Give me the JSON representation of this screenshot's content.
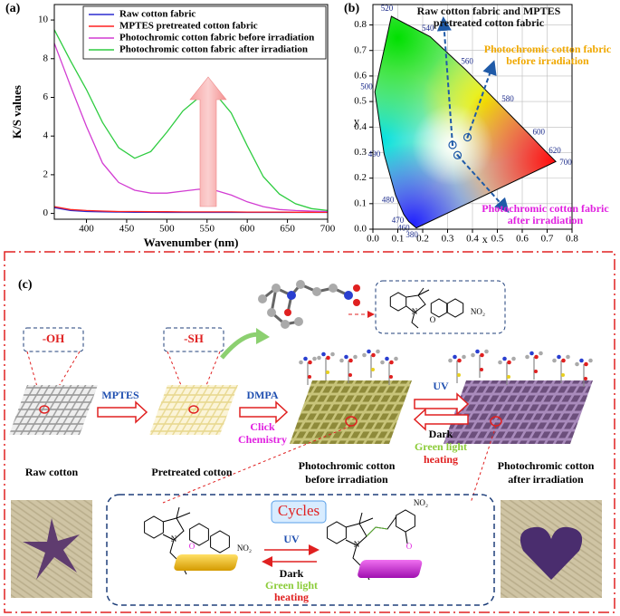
{
  "chart_data": [
    {
      "type": "line",
      "panel_label": "(a)",
      "x_label": "Wavenumber (nm)",
      "y_label": "K/S values",
      "x": [
        360,
        380,
        400,
        420,
        440,
        460,
        480,
        500,
        520,
        540,
        560,
        580,
        600,
        620,
        640,
        660,
        680,
        700
      ],
      "series": [
        {
          "name": "Raw cotton fabric",
          "color": "#2b2bd0",
          "values": [
            0.3,
            0.15,
            0.1,
            0.08,
            0.07,
            0.06,
            0.06,
            0.05,
            0.05,
            0.05,
            0.05,
            0.05,
            0.05,
            0.05,
            0.05,
            0.05,
            0.05,
            0.05
          ]
        },
        {
          "name": "MPTES pretreated cotton fabric",
          "color": "#ff2020",
          "values": [
            0.35,
            0.2,
            0.15,
            0.12,
            0.1,
            0.1,
            0.09,
            0.09,
            0.08,
            0.08,
            0.08,
            0.08,
            0.07,
            0.07,
            0.07,
            0.06,
            0.06,
            0.06
          ]
        },
        {
          "name": "Photochromic cotton fabric before irradiation",
          "color": "#d23cd2",
          "values": [
            8.8,
            6.6,
            4.5,
            2.6,
            1.6,
            1.2,
            1.05,
            1.05,
            1.15,
            1.25,
            1.2,
            0.95,
            0.6,
            0.35,
            0.2,
            0.15,
            0.12,
            0.1
          ]
        },
        {
          "name": "Photochromic cotton fabric after irradiation",
          "color": "#2ecc40",
          "values": [
            9.5,
            7.9,
            6.4,
            4.7,
            3.4,
            2.85,
            3.2,
            4.2,
            5.3,
            6.0,
            6.2,
            5.2,
            3.5,
            1.9,
            1.0,
            0.5,
            0.25,
            0.15
          ]
        }
      ],
      "xlim": [
        360,
        700
      ],
      "xticks": [
        400,
        450,
        500,
        550,
        600,
        650,
        700
      ],
      "ylim": [
        -0.3,
        10.8
      ],
      "yticks": [
        0,
        2,
        4,
        6,
        8,
        10
      ],
      "legend": "upper right"
    },
    {
      "type": "scatter",
      "panel_label": "(b)",
      "x_label": "x",
      "y_label": "y",
      "series": [
        {
          "name": "Raw cotton fabric and MPTES pretreated cotton fabric",
          "color": "#1f5aa8",
          "label_color": "#111111",
          "x": [
            0.32
          ],
          "values": [
            0.33
          ]
        },
        {
          "name": "Photochromic cotton fabric before irradiation",
          "color": "#1f5aa8",
          "label_color": "#f0a800",
          "x": [
            0.38
          ],
          "values": [
            0.36
          ]
        },
        {
          "name": "Photochromic cotton fabric after irradiation",
          "color": "#1f5aa8",
          "label_color": "#e020e0",
          "x": [
            0.34
          ],
          "values": [
            0.29
          ]
        }
      ],
      "spectral_locus": {
        "wavelengths": [
          380,
          460,
          470,
          480,
          490,
          500,
          520,
          540,
          560,
          580,
          600,
          620,
          700
        ],
        "x": [
          0.174,
          0.144,
          0.124,
          0.091,
          0.045,
          0.008,
          0.074,
          0.23,
          0.373,
          0.512,
          0.627,
          0.691,
          0.735
        ],
        "y": [
          0.005,
          0.03,
          0.058,
          0.133,
          0.295,
          0.538,
          0.834,
          0.754,
          0.624,
          0.487,
          0.373,
          0.308,
          0.265
        ]
      },
      "xlim": [
        0,
        0.8
      ],
      "xticks": [
        {
          "value": 0,
          "label": "0.0"
        },
        {
          "value": 0.1,
          "label": "0.1"
        },
        {
          "value": 0.2,
          "label": "0.2"
        },
        {
          "value": 0.3,
          "label": "0.3"
        },
        {
          "value": 0.4,
          "label": "0.4"
        },
        {
          "value": 0.5,
          "label": "0.5"
        },
        {
          "value": 0.6,
          "label": "0.6"
        },
        {
          "value": 0.7,
          "label": "0.7"
        },
        {
          "value": 0.8,
          "label": "0.8"
        }
      ],
      "ylim": [
        0,
        0.88
      ],
      "yticks": [
        {
          "value": 0,
          "label": "0.0"
        },
        {
          "value": 0.1,
          "label": "0.1"
        },
        {
          "value": 0.2,
          "label": "0.2"
        },
        {
          "value": 0.3,
          "label": "0.3"
        },
        {
          "value": 0.4,
          "label": "0.4"
        },
        {
          "value": 0.5,
          "label": "0.5"
        },
        {
          "value": 0.6,
          "label": "0.6"
        },
        {
          "value": 0.7,
          "label": "0.7"
        },
        {
          "value": 0.8,
          "label": "0.8"
        }
      ],
      "grid": true
    }
  ],
  "scheme": {
    "panel_label": "(c)",
    "groups": [
      "-OH",
      "-SH"
    ],
    "steps": [
      {
        "reagent": "MPTES"
      },
      {
        "reagent": "DMPA",
        "method": [
          "Click",
          "Chemistry"
        ]
      }
    ],
    "switch": {
      "forward": "UV",
      "reverse": [
        "Dark",
        "Green light",
        "heating"
      ]
    },
    "fabrics": [
      [
        "Raw cotton"
      ],
      [
        "Pretreated cotton"
      ],
      [
        "Photochromic cotton",
        "before irradiation"
      ],
      [
        "Photochromic cotton",
        "after irradiation"
      ]
    ],
    "cycles": {
      "title": "Cycles",
      "forward": "UV",
      "reverse": [
        "Dark",
        "Green light",
        "heating"
      ]
    },
    "atoms": {
      "box": [
        "N",
        "O",
        "NO₂"
      ],
      "closed": [
        "N",
        "O",
        "S",
        "NO₂"
      ],
      "open": [
        "N",
        "O",
        "S",
        "NO₂"
      ]
    }
  }
}
